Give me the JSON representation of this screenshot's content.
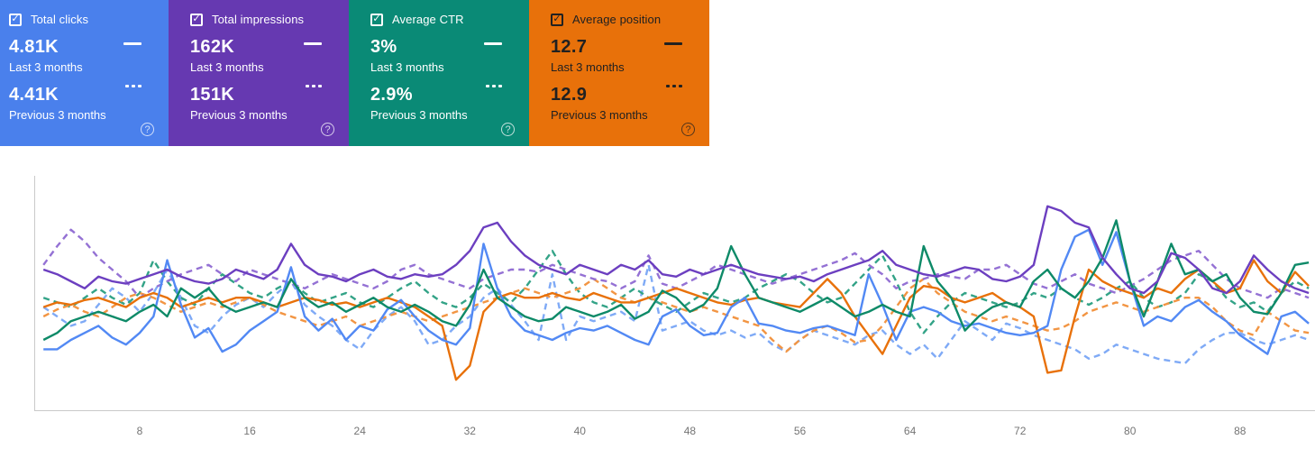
{
  "period_labels": {
    "last": "Last 3 months",
    "prev": "Previous 3 months"
  },
  "help_icon_glyph": "?",
  "checkbox_glyph": "✓",
  "cards": [
    {
      "label": "Total clicks",
      "color": "#4a80ec",
      "text_color": "#ffffff",
      "value_last": "4.81K",
      "value_prev": "4.41K",
      "checked": true
    },
    {
      "label": "Total impressions",
      "color": "#6639b1",
      "text_color": "#ffffff",
      "value_last": "162K",
      "value_prev": "151K",
      "checked": true
    },
    {
      "label": "Average CTR",
      "color": "#0a8a76",
      "text_color": "#ffffff",
      "value_last": "3%",
      "value_prev": "2.9%",
      "checked": true
    },
    {
      "label": "Average position",
      "color": "#e8710a",
      "text_color": "#212121",
      "value_last": "12.7",
      "value_prev": "12.9",
      "checked": true
    }
  ],
  "chart_data": {
    "type": "line",
    "x_start": 1,
    "x_end": 93,
    "x_ticks": [
      8,
      16,
      24,
      32,
      40,
      48,
      56,
      64,
      72,
      80,
      88
    ],
    "ylim": [
      0,
      100
    ],
    "note": "Four metrics overlaid on one plot, each normalized to chart height; no y-axis labels shown. Solid = last 3 months, dashed = previous 3 months.",
    "axis_color": "#c9c9c9",
    "tick_color": "#757575",
    "legend_position": "none",
    "grid": false,
    "series": [
      {
        "id": "clicks-previous",
        "name": "Total clicks — Previous 3 months",
        "color": "#7faaf6",
        "dash": true,
        "values": [
          44,
          40,
          36,
          38,
          45,
          52,
          48,
          42,
          50,
          60,
          48,
          36,
          33,
          40,
          45,
          48,
          44,
          50,
          55,
          45,
          40,
          36,
          30,
          26,
          34,
          40,
          44,
          38,
          28,
          30,
          36,
          40,
          48,
          52,
          45,
          38,
          30,
          58,
          30,
          40,
          38,
          40,
          42,
          38,
          62,
          34,
          36,
          38,
          34,
          32,
          34,
          31,
          33,
          28,
          25,
          30,
          34,
          32,
          30,
          28,
          32,
          34,
          28,
          24,
          28,
          22,
          30,
          38,
          34,
          30,
          37,
          35,
          32,
          30,
          28,
          26,
          22,
          24,
          28,
          26,
          24,
          22,
          21,
          20,
          26,
          30,
          33,
          33,
          30,
          28,
          30,
          32,
          30
        ]
      },
      {
        "id": "ctr-previous",
        "name": "Average CTR — Previous 3 months",
        "color": "#33a387",
        "dash": true,
        "values": [
          48,
          46,
          44,
          48,
          52,
          48,
          45,
          50,
          64,
          55,
          48,
          45,
          52,
          58,
          54,
          50,
          48,
          52,
          55,
          50,
          46,
          48,
          50,
          46,
          44,
          48,
          52,
          55,
          50,
          46,
          44,
          48,
          54,
          50,
          46,
          52,
          60,
          68,
          58,
          50,
          46,
          44,
          48,
          52,
          48,
          45,
          42,
          46,
          50,
          48,
          46,
          48,
          52,
          55,
          58,
          55,
          50,
          46,
          48,
          54,
          60,
          66,
          55,
          42,
          33,
          40,
          46,
          50,
          48,
          46,
          44,
          46,
          50,
          48,
          52,
          48,
          45,
          48,
          52,
          55,
          48,
          44,
          46,
          50,
          58,
          55,
          48,
          44,
          46,
          42,
          50,
          55,
          52
        ]
      },
      {
        "id": "position-previous",
        "name": "Average position — Previous 3 months",
        "color": "#f29543",
        "dash": true,
        "values": [
          40,
          43,
          45,
          42,
          40,
          44,
          48,
          50,
          48,
          45,
          42,
          44,
          46,
          44,
          46,
          48,
          45,
          42,
          40,
          38,
          36,
          38,
          40,
          36,
          38,
          40,
          42,
          40,
          38,
          40,
          42,
          44,
          46,
          48,
          50,
          52,
          50,
          48,
          50,
          52,
          56,
          52,
          48,
          46,
          48,
          46,
          44,
          42,
          44,
          42,
          40,
          38,
          36,
          30,
          25,
          30,
          34,
          36,
          33,
          29,
          30,
          36,
          44,
          52,
          56,
          50,
          46,
          42,
          40,
          38,
          40,
          38,
          36,
          34,
          35,
          38,
          42,
          44,
          46,
          44,
          42,
          44,
          46,
          48,
          48,
          44,
          38,
          34,
          32,
          42,
          38,
          34,
          33
        ]
      },
      {
        "id": "impressions-previous",
        "name": "Total impressions — Previous 3 months",
        "color": "#9471d4",
        "dash": true,
        "values": [
          62,
          70,
          77,
          72,
          65,
          60,
          55,
          48,
          52,
          55,
          58,
          60,
          62,
          58,
          55,
          60,
          58,
          56,
          54,
          52,
          55,
          58,
          56,
          54,
          52,
          55,
          60,
          62,
          58,
          56,
          54,
          52,
          56,
          58,
          60,
          60,
          59,
          62,
          60,
          58,
          56,
          55,
          52,
          55,
          66,
          54,
          52,
          55,
          58,
          62,
          60,
          58,
          56,
          54,
          56,
          58,
          60,
          62,
          64,
          67,
          62,
          58,
          52,
          55,
          56,
          58,
          57,
          56,
          60,
          60,
          62,
          58,
          54,
          52,
          55,
          58,
          54,
          52,
          50,
          53,
          56,
          60,
          64,
          66,
          68,
          62,
          56,
          52,
          50,
          48,
          52,
          50,
          48
        ]
      },
      {
        "id": "position-last",
        "name": "Average position — Last 3 months",
        "color": "#e8710a",
        "dash": false,
        "values": [
          44,
          46,
          45,
          47,
          48,
          46,
          44,
          48,
          50,
          48,
          44,
          46,
          48,
          46,
          48,
          48,
          46,
          44,
          46,
          48,
          47,
          45,
          46,
          44,
          46,
          48,
          46,
          44,
          40,
          36,
          13,
          19,
          42,
          48,
          50,
          48,
          48,
          50,
          48,
          47,
          50,
          48,
          46,
          46,
          48,
          50,
          52,
          50,
          48,
          46,
          45,
          47,
          48,
          46,
          45,
          44,
          50,
          56,
          50,
          40,
          32,
          24,
          36,
          48,
          53,
          52,
          48,
          46,
          48,
          50,
          46,
          44,
          40,
          16,
          17,
          40,
          60,
          55,
          52,
          50,
          48,
          52,
          50,
          56,
          60,
          55,
          50,
          52,
          64,
          55,
          50,
          59,
          53
        ]
      },
      {
        "id": "clicks-last",
        "name": "Total clicks — Last 3 months",
        "color": "#5289f4",
        "dash": false,
        "values": [
          26,
          26,
          30,
          33,
          36,
          31,
          28,
          33,
          40,
          64,
          45,
          31,
          35,
          25,
          28,
          34,
          38,
          42,
          61,
          40,
          34,
          39,
          30,
          36,
          34,
          43,
          47,
          40,
          34,
          30,
          28,
          35,
          71,
          52,
          40,
          34,
          32,
          30,
          33,
          35,
          34,
          36,
          33,
          30,
          28,
          40,
          43,
          36,
          32,
          33,
          44,
          48,
          37,
          36,
          34,
          33,
          35,
          36,
          34,
          32,
          58,
          45,
          30,
          42,
          44,
          42,
          38,
          36,
          37,
          35,
          33,
          32,
          33,
          36,
          60,
          74,
          77,
          62,
          76,
          55,
          36,
          40,
          38,
          44,
          47,
          42,
          38,
          32,
          28,
          24,
          40,
          42,
          37
        ]
      },
      {
        "id": "ctr-last",
        "name": "Average CTR — Last 3 months",
        "color": "#0e8a68",
        "dash": false,
        "values": [
          30,
          33,
          38,
          40,
          42,
          40,
          38,
          42,
          45,
          40,
          52,
          48,
          52,
          45,
          42,
          44,
          46,
          44,
          56,
          48,
          44,
          46,
          42,
          45,
          48,
          44,
          42,
          45,
          42,
          38,
          36,
          45,
          60,
          48,
          44,
          40,
          38,
          39,
          44,
          42,
          40,
          42,
          45,
          39,
          42,
          51,
          48,
          42,
          45,
          52,
          70,
          58,
          48,
          46,
          44,
          42,
          45,
          48,
          44,
          40,
          42,
          45,
          42,
          40,
          70,
          55,
          48,
          34,
          40,
          44,
          46,
          44,
          55,
          60,
          52,
          48,
          55,
          65,
          81,
          55,
          40,
          55,
          71,
          58,
          60,
          55,
          58,
          48,
          42,
          41,
          50,
          62,
          63
        ]
      },
      {
        "id": "impressions-last",
        "name": "Total impressions — Last 3 months",
        "color": "#6c3fc0",
        "dash": false,
        "values": [
          60,
          58,
          55,
          52,
          57,
          55,
          54,
          56,
          58,
          60,
          57,
          55,
          54,
          56,
          60,
          58,
          56,
          60,
          71,
          62,
          58,
          57,
          55,
          58,
          60,
          57,
          56,
          58,
          57,
          58,
          62,
          68,
          78,
          80,
          72,
          66,
          62,
          60,
          58,
          62,
          60,
          58,
          62,
          60,
          64,
          58,
          57,
          60,
          58,
          60,
          62,
          60,
          58,
          57,
          56,
          57,
          55,
          58,
          60,
          62,
          64,
          68,
          62,
          60,
          58,
          57,
          59,
          61,
          60,
          56,
          55,
          57,
          62,
          87,
          85,
          80,
          78,
          65,
          58,
          52,
          50,
          55,
          67,
          65,
          60,
          52,
          50,
          55,
          66,
          60,
          55,
          52,
          50
        ]
      }
    ]
  }
}
